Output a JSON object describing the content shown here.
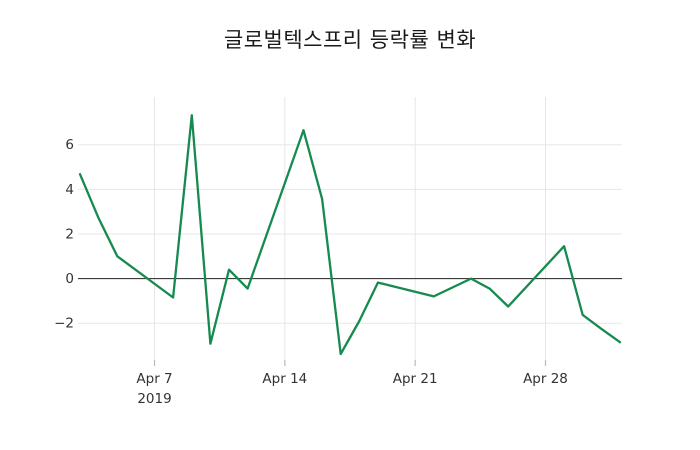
{
  "colors": {
    "background": "#ffffff",
    "line": "#168a4f",
    "grid": "#e7e7e7",
    "zero_line": "#3c3c3c",
    "tick_text": "#333333",
    "tick_mark": "#bbbbbb",
    "title_text": "#1a1a1a"
  },
  "chart_data": {
    "type": "line",
    "title": "글로벌텍스프리 등락률 변화",
    "xlabel": "",
    "ylabel": "",
    "year": "2019",
    "legend": false,
    "grid": true,
    "zero_line": true,
    "line_color": "#168a4f",
    "dates": [
      "Apr 3",
      "Apr 4",
      "Apr 5",
      "Apr 8",
      "Apr 9",
      "Apr 10",
      "Apr 11",
      "Apr 12",
      "Apr 15",
      "Apr 16",
      "Apr 17",
      "Apr 18",
      "Apr 19",
      "Apr 22",
      "Apr 23",
      "Apr 24",
      "Apr 25",
      "Apr 26",
      "Apr 29",
      "Apr 30",
      "May 1",
      "May 2"
    ],
    "day_offsets": [
      0,
      1,
      2,
      5,
      6,
      7,
      8,
      9,
      12,
      13,
      14,
      15,
      16,
      19,
      20,
      21,
      22,
      23,
      26,
      27,
      28,
      29
    ],
    "values": [
      4.68,
      2.7,
      1.0,
      -0.85,
      7.32,
      -2.92,
      0.4,
      -0.45,
      6.65,
      3.57,
      -3.38,
      -1.9,
      -0.18,
      -0.8,
      -0.4,
      0.0,
      -0.45,
      -1.25,
      1.45,
      -1.63,
      -2.25,
      -2.85
    ],
    "x_ticks": [
      {
        "label": "Apr 7",
        "sublabel": "2019",
        "day_offset": 4
      },
      {
        "label": "Apr 14",
        "sublabel": "",
        "day_offset": 11
      },
      {
        "label": "Apr 21",
        "sublabel": "",
        "day_offset": 18
      },
      {
        "label": "Apr 28",
        "sublabel": "",
        "day_offset": 25
      }
    ],
    "y_ticks": [
      {
        "label": "6",
        "value": 6
      },
      {
        "label": "4",
        "value": 4
      },
      {
        "label": "2",
        "value": 2
      },
      {
        "label": "0",
        "value": 0
      },
      {
        "label": "−2",
        "value": -2
      }
    ],
    "xlim_days": [
      -0.11,
      29.11
    ],
    "ylim": [
      -3.65,
      8.14
    ]
  }
}
